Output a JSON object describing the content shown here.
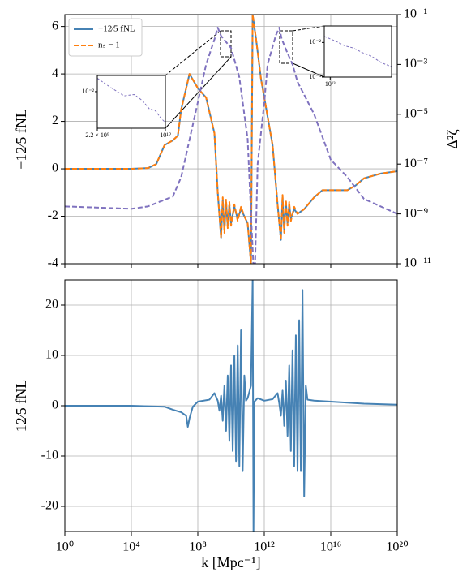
{
  "chart_data": [
    {
      "type": "line",
      "xscale": "log",
      "xlim": [
        1,
        1e+20
      ],
      "xticks": [
        1,
        10000,
        100000000,
        1000000000000,
        10000000000000000,
        1e+20
      ],
      "ylim": [
        -4,
        6.5
      ],
      "yticks": [
        -4,
        -2,
        0,
        2,
        4,
        6
      ],
      "ylabel": "−12⁄5 fNL",
      "grid": true,
      "legend": "upper left",
      "y2scale": "log",
      "y2lim": [
        1e-11,
        0.1
      ],
      "y2label": "Δ²ζ",
      "y2ticks": [
        {
          "value": 1e-11,
          "label": "10⁻¹¹"
        },
        {
          "value": 1e-09,
          "label": "10⁻⁹"
        },
        {
          "value": 1e-07,
          "label": "10⁻⁷"
        },
        {
          "value": 1e-05,
          "label": "10⁻⁵"
        },
        {
          "value": 0.001,
          "label": "10⁻³"
        },
        {
          "value": 0.1,
          "label": "10⁻¹"
        }
      ],
      "series": [
        {
          "name": "−12⁄5 fNL",
          "color": "#4682b4",
          "dash": false,
          "x": [
            1,
            10000,
            100000,
            316200,
            1000000,
            3162000,
            6310000,
            10000000,
            31620000,
            100000000,
            316200000,
            1000000000,
            1585000000,
            2512000000,
            3162000000,
            3981000000,
            5012000000,
            6310000000,
            7943000000,
            10000000000,
            15850000000,
            25120000000,
            39810000000,
            63100000000,
            100000000000,
            158500000000,
            199500000000,
            316200000000,
            631000000000,
            1000000000000,
            3162000000000,
            6310000000000,
            10000000000000,
            12590000000000,
            15850000000000,
            19950000000000,
            25120000000000,
            31620000000000,
            39810000000000,
            63100000000000,
            100000000000000,
            251200000000000,
            1000000000000000,
            3162000000000000,
            100000000000000000,
            316200000000000000,
            1000000000000000000,
            10000000000000000000,
            1e+20
          ],
          "values": [
            0,
            0,
            0.03,
            0.2,
            1.0,
            1.2,
            1.4,
            2.5,
            4.0,
            3.4,
            3.0,
            1.5,
            -1.0,
            -2.9,
            -1.3,
            -2.6,
            -1.4,
            -2.4,
            -1.5,
            -2.3,
            -1.6,
            -2.1,
            -1.7,
            -2.0,
            -2.3,
            -4,
            6.5,
            5.5,
            3.8,
            3.0,
            1.0,
            -1.5,
            -3.0,
            -1.2,
            -2.6,
            -1.4,
            -2.3,
            -1.5,
            -2.1,
            -1.7,
            -1.9,
            -1.7,
            -1.2,
            -0.9,
            -0.9,
            -0.7,
            -0.4,
            -0.2,
            -0.1
          ]
        },
        {
          "name": "nₛ − 1",
          "color": "#ff7f0e",
          "dash": true,
          "x": [
            1,
            10000,
            100000,
            316200,
            1000000,
            3162000,
            6310000,
            10000000,
            31620000,
            100000000,
            316200000,
            1000000000,
            1585000000,
            2512000000,
            3162000000,
            3981000000,
            5012000000,
            6310000000,
            7943000000,
            10000000000,
            15850000000,
            25120000000,
            39810000000,
            63100000000,
            100000000000,
            158500000000,
            199500000000,
            316200000000,
            631000000000,
            1000000000000,
            3162000000000,
            6310000000000,
            10000000000000,
            12590000000000,
            15850000000000,
            19950000000000,
            25120000000000,
            31620000000000,
            39810000000000,
            63100000000000,
            100000000000000,
            251200000000000,
            1000000000000000,
            3162000000000000,
            100000000000000000,
            316200000000000000,
            1000000000000000000,
            10000000000000000000,
            1e+20
          ],
          "values": [
            0,
            0,
            0.03,
            0.2,
            1.0,
            1.2,
            1.4,
            2.5,
            4.0,
            3.4,
            3.0,
            1.5,
            -1.0,
            -2.9,
            -1.2,
            -2.7,
            -1.3,
            -2.5,
            -1.4,
            -2.4,
            -1.5,
            -2.2,
            -1.6,
            -2.0,
            -2.3,
            -4,
            6.5,
            5.5,
            3.8,
            3.0,
            1.0,
            -1.5,
            -3.0,
            -1.1,
            -2.7,
            -1.3,
            -2.4,
            -1.4,
            -2.2,
            -1.6,
            -1.9,
            -1.7,
            -1.2,
            -0.9,
            -0.9,
            -0.7,
            -0.4,
            -0.2,
            -0.1
          ]
        },
        {
          "color": "#7f72bf",
          "dash": true,
          "axis": "y2",
          "x": [
            1,
            10000,
            100000,
            3162000,
            10000000,
            100000000,
            316200000,
            1000000000,
            1585000000,
            2512000000,
            5000000000,
            10000000000,
            31620000000,
            100000000000,
            158500000000,
            220000000000,
            280000000000,
            398100000000,
            1000000000000,
            1585000000000,
            5000000000000,
            8000000000000,
            11000000000000,
            20000000000000,
            50000000000000,
            100000000000000,
            1000000000000000,
            10000000000000000,
            100000000000000000,
            1000000000000000000,
            1e+20
          ],
          "values": [
            2e-09,
            1.6e-09,
            2e-09,
            5e-09,
            3e-08,
            3e-05,
            0.001,
            0.01,
            0.03,
            0.014,
            0.008,
            0.0046,
            0.0003,
            1e-06,
            1e-09,
            1e-11,
            1e-11,
            1e-07,
            3e-05,
            0.001,
            0.015,
            0.03,
            0.011,
            0.004,
            0.001,
            0.0002,
            1e-05,
            1.5e-07,
            3e-08,
            4e-09,
            1e-09
          ]
        }
      ]
    },
    {
      "type": "line",
      "xscale": "log",
      "xlim": [
        1,
        1e+20
      ],
      "xticks": [
        {
          "value": 1,
          "label": "10⁰"
        },
        {
          "value": 10000,
          "label": "10⁴"
        },
        {
          "value": 100000000,
          "label": "10⁸"
        },
        {
          "value": 1000000000000,
          "label": "10¹²"
        },
        {
          "value": 10000000000000000,
          "label": "10¹⁶"
        },
        {
          "value": 1e+20,
          "label": "10²⁰"
        }
      ],
      "xlabel": "k [Mpc⁻¹]",
      "ylim": [
        -25,
        25
      ],
      "yticks": [
        -20,
        -10,
        0,
        10,
        20
      ],
      "ylabel": "12⁄5 fNL",
      "grid": true,
      "series": [
        {
          "color": "#4682b4",
          "dash": false,
          "x": [
            1,
            10000,
            1000000,
            3162000,
            10000000,
            19950000,
            25120000,
            31620000,
            50120000,
            100000000,
            501200000,
            1000000000,
            1585000000,
            1995000000,
            2512000000,
            3162000000,
            3981000000,
            5012000000,
            6310000000,
            7943000000,
            10000000000,
            12590000000,
            15850000000,
            19950000000,
            25120000000,
            31620000000,
            39810000000,
            50120000000,
            63100000000,
            79430000000,
            100000000000,
            158500000000,
            199500000000,
            223900000000,
            251200000000,
            398100000000,
            1000000000000,
            3162000000000,
            6310000000000,
            7943000000000,
            10000000000000,
            12590000000000,
            15850000000000,
            19950000000000,
            25120000000000,
            31620000000000,
            39810000000000,
            50120000000000,
            63100000000000,
            79430000000000,
            100000000000000,
            125900000000000,
            158500000000000,
            199500000000000,
            251200000000000,
            316200000000000,
            398100000000000,
            1000000000000000,
            10000000000000000,
            1000000000000000000,
            1e+20
          ],
          "values": [
            0,
            0,
            -0.2,
            -0.8,
            -1.3,
            -2.0,
            -4.2,
            -2.5,
            -0.2,
            0.8,
            1.2,
            2.5,
            1.0,
            -1,
            2,
            -3,
            4,
            -5,
            6,
            -7,
            8,
            -9,
            10,
            -11,
            12,
            -12,
            15,
            -13,
            6,
            1.0,
            1.5,
            4,
            25,
            -25,
            0.8,
            1.5,
            1.0,
            1.3,
            2.5,
            0.5,
            -2,
            3,
            -4,
            5,
            -6,
            8,
            -9,
            11,
            -12,
            14,
            -13,
            17,
            -13,
            23,
            -18,
            4,
            1.2,
            1,
            0.8,
            0.4,
            0.2
          ]
        }
      ]
    },
    {
      "type": "line",
      "xscale": "log",
      "yscale": "log",
      "xlim": [
        2200000000,
        10000000000
      ],
      "ylim": [
        0.004,
        0.015
      ],
      "xticks": [
        {
          "value": 2200000000,
          "label": "2.2 × 10⁹"
        },
        {
          "value": 10000000000,
          "label": "10¹⁰"
        }
      ],
      "yticks": [
        {
          "value": 0.01,
          "label": "10⁻²"
        }
      ],
      "grid": false,
      "series": [
        {
          "color": "#7f72bf",
          "dash": true,
          "x": [
            2200000000,
            3000000000,
            4000000000,
            5000000000,
            6000000000,
            7000000000,
            8000000000,
            9000000000,
            10000000000
          ],
          "values": [
            0.014,
            0.011,
            0.009,
            0.0093,
            0.008,
            0.0065,
            0.0062,
            0.0052,
            0.0046
          ]
        }
      ]
    },
    {
      "type": "line",
      "xscale": "log",
      "yscale": "log",
      "xlim": [
        9000000000000,
        30000000000000
      ],
      "ylim": [
        0.001,
        0.03
      ],
      "xticks": [
        {
          "value": 10000000000000,
          "label": "10¹³"
        }
      ],
      "yticks": [
        {
          "value": 0.01,
          "label": "10⁻²"
        },
        {
          "value": 0.001,
          "label": "10⁻³"
        }
      ],
      "grid": false,
      "series": [
        {
          "color": "#7f72bf",
          "dash": true,
          "x": [
            9000000000000,
            11000000000000,
            13000000000000,
            15000000000000,
            18000000000000,
            21000000000000,
            25000000000000,
            30000000000000
          ],
          "values": [
            0.015,
            0.011,
            0.008,
            0.007,
            0.005,
            0.004,
            0.0026,
            0.002
          ]
        }
      ]
    }
  ]
}
